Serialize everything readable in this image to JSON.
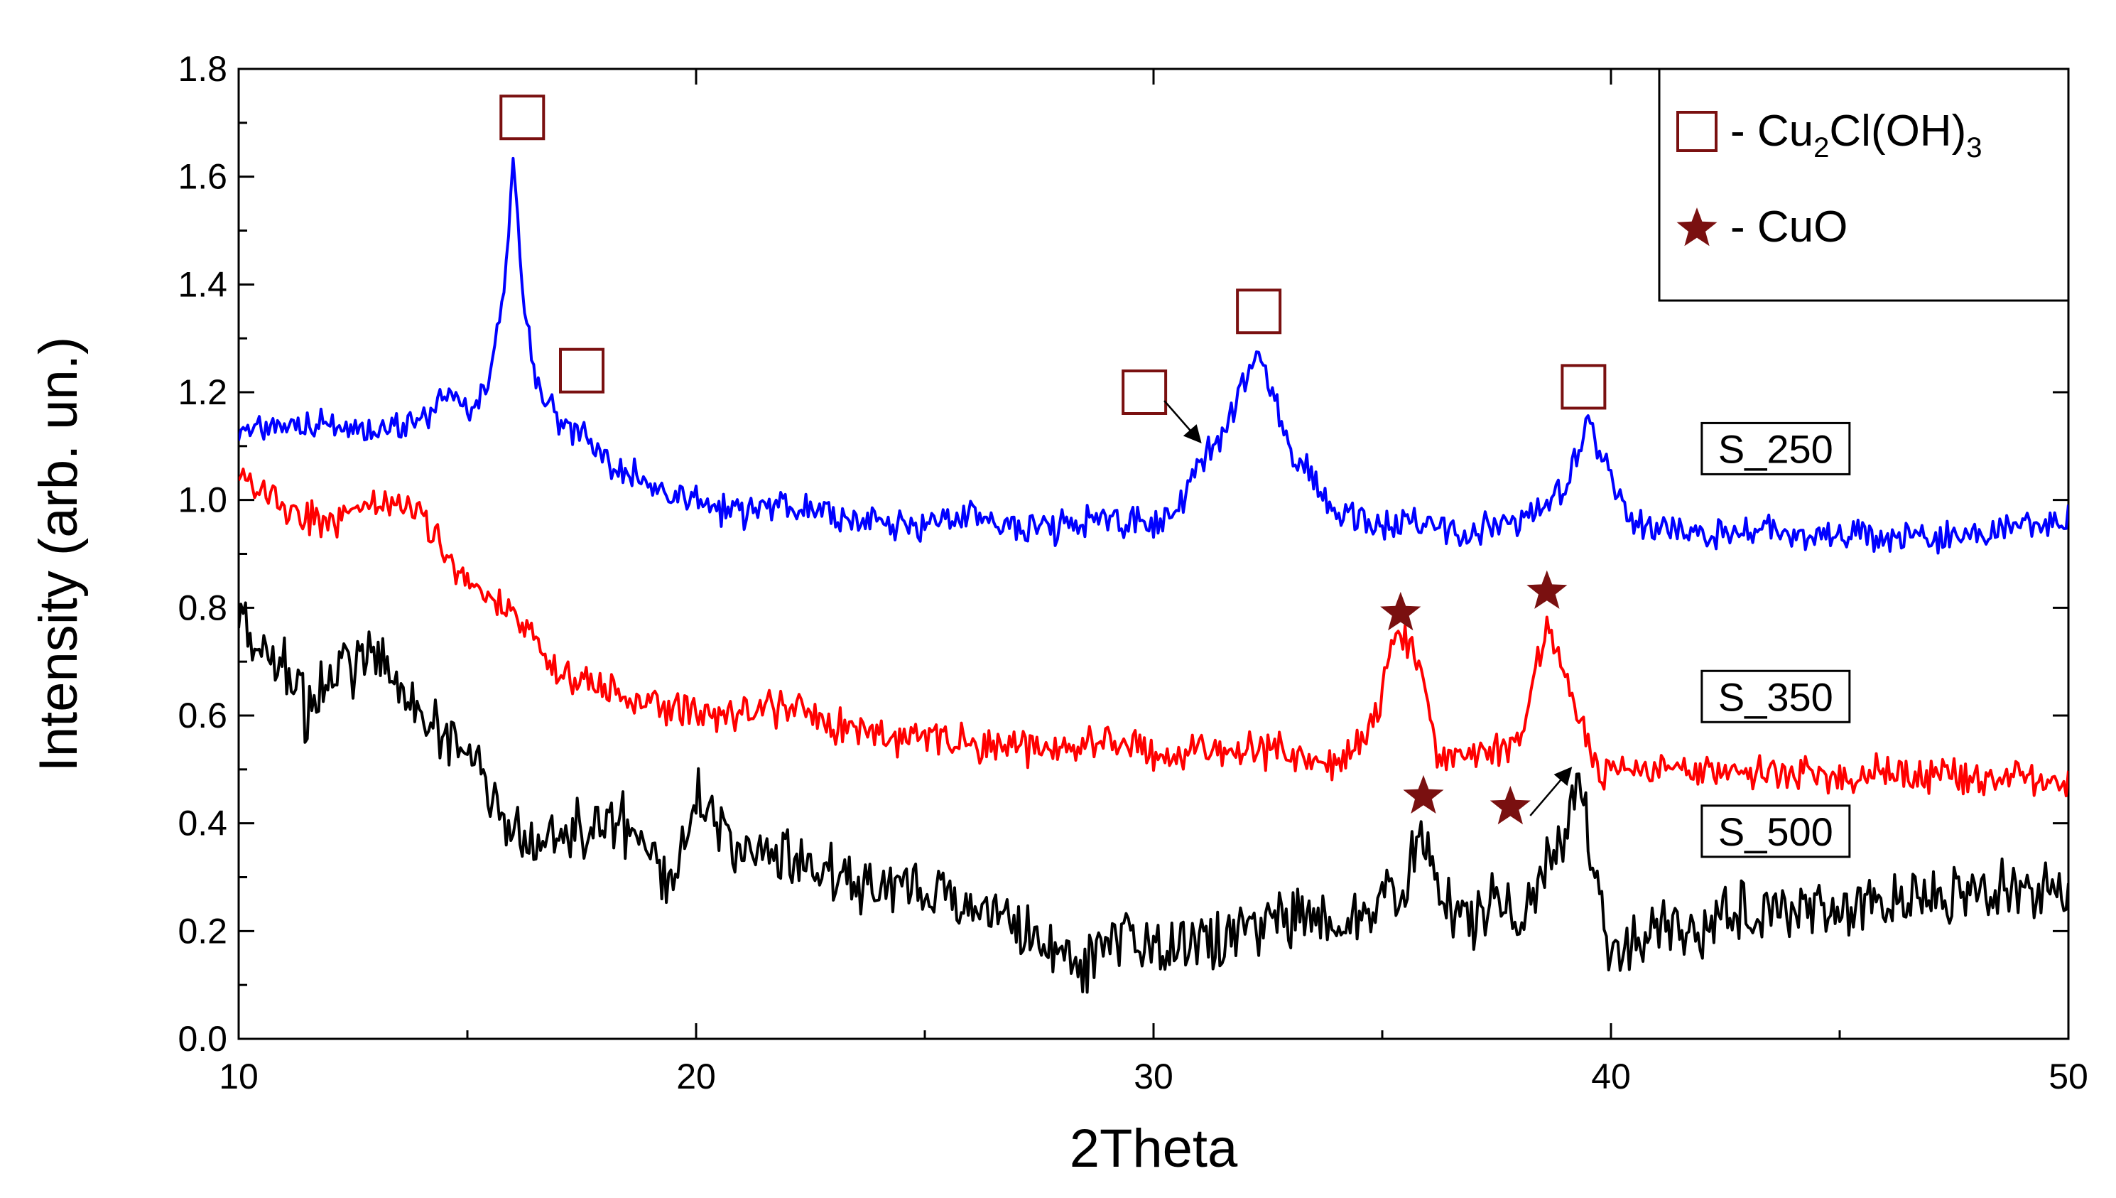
{
  "chart_data": {
    "type": "line",
    "title": "",
    "xlabel": "2Theta",
    "ylabel": "Intensity (arb. un.)",
    "xlim": [
      10,
      50
    ],
    "ylim": [
      0.0,
      1.8
    ],
    "xticks": [
      10,
      20,
      30,
      40,
      50
    ],
    "xtick_labels": [
      "10",
      "20",
      "30",
      "40",
      "50"
    ],
    "yticks": [
      0.0,
      0.2,
      0.4,
      0.6,
      0.8,
      1.0,
      1.2,
      1.4,
      1.6,
      1.8
    ],
    "ytick_labels": [
      "0.0",
      "0.2",
      "0.4",
      "0.6",
      "0.8",
      "1.0",
      "1.2",
      "1.4",
      "1.6",
      "1.8"
    ],
    "grid": false,
    "legend_position": "top-right",
    "legend": [
      {
        "marker": "square",
        "label_prefix": "- Cu",
        "sub1": "2",
        "label_mid": "Cl(OH)",
        "sub2": "3"
      },
      {
        "marker": "star",
        "label": "- CuO"
      }
    ],
    "marker_color": "#7a1010",
    "series": [
      {
        "name": "S_250",
        "color": "#0000ff",
        "label_anchor": [
          43.6,
          1.09
        ],
        "x": [
          10.0,
          11.0,
          12.0,
          13.0,
          14.0,
          14.5,
          15.0,
          15.5,
          15.8,
          16.0,
          16.2,
          16.5,
          17.0,
          17.5,
          18.0,
          19.0,
          20.0,
          21.0,
          22.0,
          23.0,
          24.0,
          25.0,
          26.0,
          27.0,
          28.0,
          29.0,
          30.0,
          30.5,
          31.0,
          31.5,
          32.0,
          32.3,
          32.6,
          33.0,
          34.0,
          35.0,
          36.0,
          37.0,
          38.0,
          39.0,
          39.5,
          40.0,
          40.5,
          41.0,
          42.0,
          44.0,
          46.0,
          48.0,
          50.0
        ],
        "values": [
          1.12,
          1.14,
          1.14,
          1.13,
          1.14,
          1.2,
          1.17,
          1.22,
          1.38,
          1.63,
          1.4,
          1.22,
          1.14,
          1.13,
          1.07,
          1.03,
          1.0,
          0.97,
          1.0,
          0.97,
          0.96,
          0.95,
          0.98,
          0.95,
          0.95,
          0.97,
          0.95,
          0.97,
          1.07,
          1.12,
          1.22,
          1.28,
          1.2,
          1.1,
          0.97,
          0.96,
          0.95,
          0.94,
          0.96,
          1.02,
          1.14,
          1.05,
          0.96,
          0.95,
          0.94,
          0.94,
          0.93,
          0.93,
          0.96
        ]
      },
      {
        "name": "S_350",
        "color": "#ff0000",
        "label_anchor": [
          43.6,
          0.63
        ],
        "x": [
          10.0,
          11.0,
          12.0,
          13.0,
          14.0,
          15.0,
          16.0,
          17.0,
          18.0,
          19.0,
          20.0,
          21.0,
          22.0,
          23.0,
          24.0,
          25.0,
          26.0,
          27.0,
          28.0,
          29.0,
          30.0,
          31.0,
          32.0,
          33.0,
          34.0,
          34.8,
          35.2,
          35.5,
          35.8,
          36.2,
          37.0,
          38.0,
          38.3,
          38.6,
          38.9,
          39.3,
          39.6,
          40.0,
          41.0,
          42.0,
          44.0,
          46.0,
          48.0,
          50.0
        ],
        "values": [
          1.05,
          0.98,
          0.95,
          1.0,
          0.97,
          0.85,
          0.78,
          0.68,
          0.65,
          0.62,
          0.61,
          0.6,
          0.62,
          0.58,
          0.56,
          0.56,
          0.55,
          0.54,
          0.54,
          0.55,
          0.53,
          0.54,
          0.54,
          0.53,
          0.51,
          0.58,
          0.72,
          0.74,
          0.7,
          0.52,
          0.52,
          0.54,
          0.68,
          0.76,
          0.7,
          0.6,
          0.5,
          0.5,
          0.5,
          0.5,
          0.49,
          0.49,
          0.49,
          0.48
        ]
      },
      {
        "name": "S_500",
        "color": "#000000",
        "label_anchor": [
          43.6,
          0.38
        ],
        "x": [
          10.0,
          11.0,
          11.5,
          12.0,
          13.0,
          14.0,
          14.5,
          15.0,
          15.5,
          16.0,
          17.0,
          18.0,
          19.0,
          19.5,
          20.0,
          21.0,
          22.0,
          23.0,
          24.0,
          25.0,
          26.0,
          27.0,
          28.0,
          28.5,
          29.0,
          30.0,
          31.0,
          32.0,
          33.0,
          34.0,
          35.0,
          35.5,
          35.8,
          36.1,
          36.5,
          37.0,
          37.5,
          38.0,
          38.5,
          39.0,
          39.3,
          39.6,
          40.0,
          41.0,
          42.0,
          43.0,
          44.0,
          46.0,
          48.0,
          50.0
        ],
        "values": [
          0.78,
          0.7,
          0.6,
          0.68,
          0.72,
          0.62,
          0.56,
          0.55,
          0.45,
          0.38,
          0.36,
          0.42,
          0.35,
          0.28,
          0.45,
          0.33,
          0.35,
          0.3,
          0.28,
          0.28,
          0.24,
          0.22,
          0.16,
          0.12,
          0.2,
          0.17,
          0.18,
          0.2,
          0.22,
          0.21,
          0.26,
          0.3,
          0.4,
          0.33,
          0.24,
          0.22,
          0.28,
          0.2,
          0.3,
          0.38,
          0.5,
          0.3,
          0.16,
          0.19,
          0.2,
          0.24,
          0.25,
          0.25,
          0.27,
          0.28
        ]
      }
    ],
    "annotations": [
      {
        "marker": "square",
        "x": 16.2,
        "y": 1.71
      },
      {
        "marker": "square",
        "x": 17.5,
        "y": 1.24
      },
      {
        "marker": "square",
        "x": 29.8,
        "y": 1.2,
        "arrow_to": [
          31.0,
          1.11
        ]
      },
      {
        "marker": "square",
        "x": 32.3,
        "y": 1.35
      },
      {
        "marker": "square",
        "x": 39.4,
        "y": 1.21
      },
      {
        "marker": "star",
        "x": 35.4,
        "y": 0.79
      },
      {
        "marker": "star",
        "x": 38.6,
        "y": 0.83
      },
      {
        "marker": "star",
        "x": 35.9,
        "y": 0.45
      },
      {
        "marker": "star",
        "x": 37.8,
        "y": 0.43,
        "arrow_to": [
          39.1,
          0.5
        ]
      }
    ]
  }
}
